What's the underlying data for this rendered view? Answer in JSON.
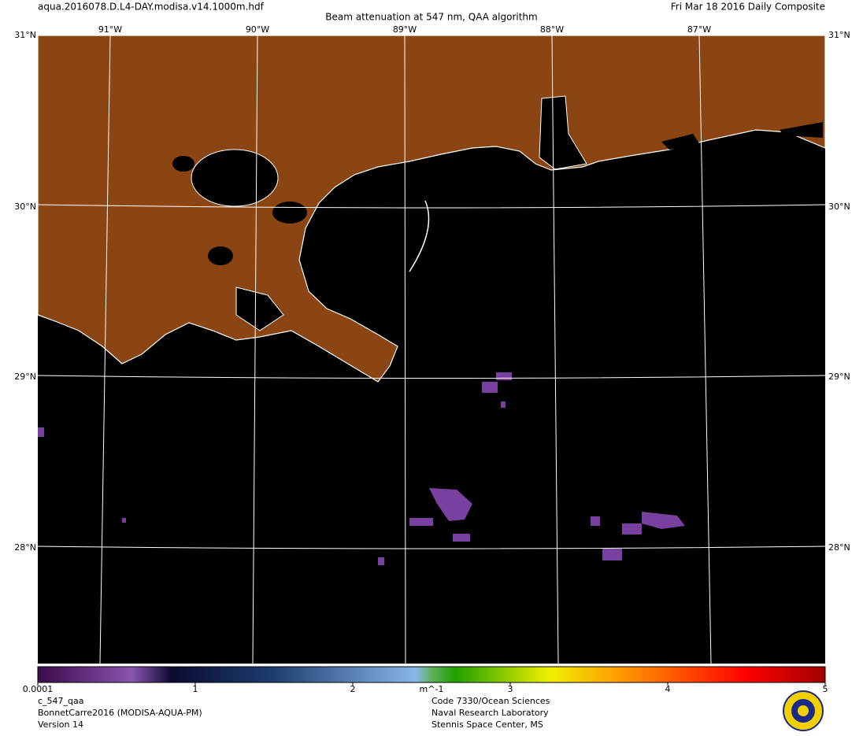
{
  "header": {
    "file": "aqua.2016078.D.L4-DAY.modisa.v14.1000m.hdf",
    "title": "Beam attenuation at 547 nm, QAA algorithm",
    "date": "Fri Mar 18 2016 Daily Composite"
  },
  "map": {
    "lon_labels": [
      "91°W",
      "90°W",
      "89°W",
      "88°W",
      "87°W"
    ],
    "lat_labels": [
      "31°N",
      "30°N",
      "29°N",
      "28°N"
    ]
  },
  "colorbar": {
    "ticks": [
      0.0001,
      1,
      2,
      3,
      4,
      5
    ],
    "unit": "m^-1"
  },
  "footer": {
    "left": [
      "c_547_qaa",
      "BonnetCarre2016 (MODISA-AQUA-PM)",
      "Version 14"
    ],
    "right": [
      "Code 7330/Ocean Sciences",
      "Naval Research Laboratory",
      "Stennis Space Center, MS"
    ]
  }
}
